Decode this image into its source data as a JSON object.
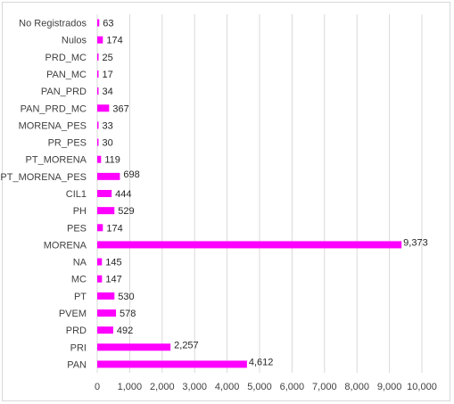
{
  "chart_data": {
    "type": "bar",
    "orientation": "horizontal",
    "categories": [
      "PAN",
      "PRI",
      "PRD",
      "PVEM",
      "PT",
      "MC",
      "NA",
      "MORENA",
      "PES",
      "PH",
      "CIL1",
      "PT_MORENA_PES",
      "PT_MORENA",
      "PR_PES",
      "MORENA_PES",
      "PAN_PRD_MC",
      "PAN_PRD",
      "PAN_MC",
      "PRD_MC",
      "Nulos",
      "No Registrados"
    ],
    "values": [
      4612,
      2257,
      492,
      578,
      530,
      147,
      145,
      9373,
      174,
      529,
      444,
      698,
      119,
      30,
      33,
      367,
      34,
      17,
      25,
      174,
      63
    ],
    "data_labels": [
      "4,612",
      "2,257",
      "492",
      "578",
      "530",
      "147",
      "145",
      "9,373",
      "174",
      "529",
      "444",
      "698",
      "119",
      "30",
      "33",
      "367",
      "34",
      "17",
      "25",
      "174",
      "63"
    ],
    "xlim": [
      0,
      10000
    ],
    "x_ticks": [
      0,
      1000,
      2000,
      3000,
      4000,
      5000,
      6000,
      7000,
      8000,
      9000,
      10000
    ],
    "x_tick_labels": [
      "0",
      "1,000",
      "2,000",
      "3,000",
      "4,000",
      "5,000",
      "6,000",
      "7,000",
      "8,000",
      "9,000",
      "10,000"
    ],
    "grid": "vertical",
    "legend": "none",
    "bar_color": "#FF00FF",
    "grid_color": "#d9d9d9"
  }
}
